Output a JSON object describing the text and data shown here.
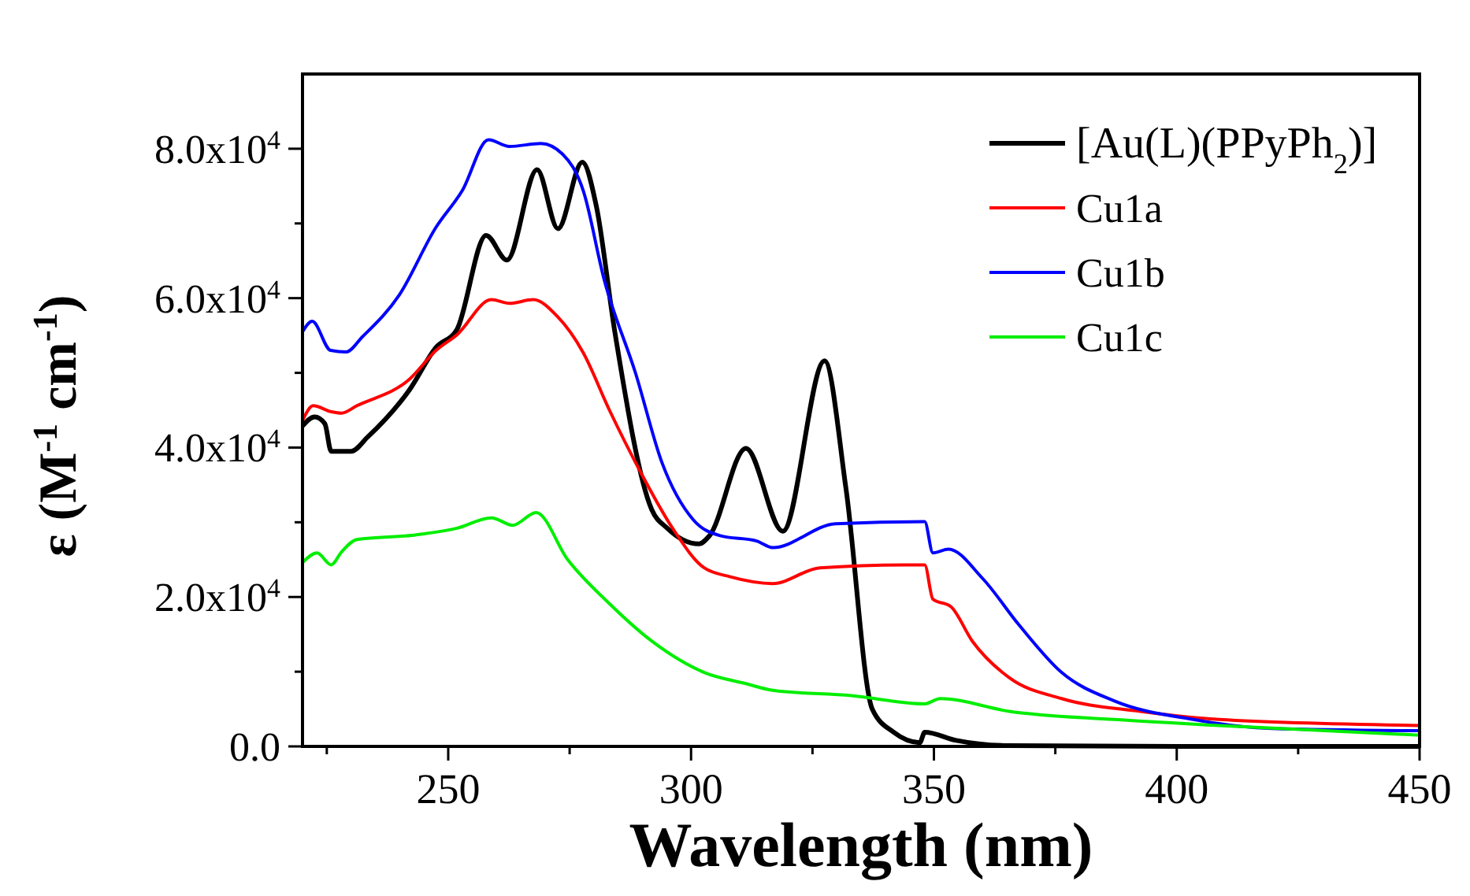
{
  "chart_data": {
    "type": "line",
    "xlabel": "Wavelength (nm)",
    "ylabel": "ε (M$^{-1}$ cm$^{-1}$)",
    "xlim": [
      220,
      450
    ],
    "ylim": [
      0,
      90000
    ],
    "xticks": [
      {
        "value": 225,
        "label": null
      },
      250,
      {
        "value": 275,
        "label": null
      },
      300,
      {
        "value": 325,
        "label": null
      },
      350,
      {
        "value": 375,
        "label": null
      },
      400,
      {
        "value": 425,
        "label": null
      },
      450
    ],
    "yticks": [
      {
        "value": 0,
        "label": "0.0"
      },
      {
        "value": 10000,
        "label": null
      },
      {
        "value": 20000,
        "label": "2.0x10$^{4}$"
      },
      {
        "value": 30000,
        "label": null
      },
      {
        "value": 40000,
        "label": "4.0x10$^{4}$"
      },
      {
        "value": 50000,
        "label": null
      },
      {
        "value": 60000,
        "label": "6.0x10$^{4}$"
      },
      {
        "value": 70000,
        "label": null
      },
      {
        "value": 80000,
        "label": "8.0x10$^{4}$"
      }
    ],
    "grid": false,
    "legend": "top right",
    "line_style": "solid",
    "marker": "none",
    "series": [
      {
        "name": "[Au(L)(PPyPh$_{2}$)]",
        "color": "#000000",
        "x": [
          220,
          222.5,
          224.6,
          225.9,
          230,
          233.4,
          242.1,
          247.5,
          251.8,
          257.8,
          262.1,
          268.3,
          272.6,
          277.6,
          280.5,
          284.3,
          291.9,
          295.1,
          301.6,
          303.8,
          311.3,
          318.9,
          327.5,
          331.9,
          337.3,
          341.7,
          347.1,
          348.1,
          354.6,
          365.5,
          400,
          450
        ],
        "values": [
          42900,
          44100,
          43200,
          39500,
          39500,
          41400,
          47800,
          53400,
          55800,
          68400,
          65100,
          77200,
          69300,
          78200,
          72300,
          55500,
          31700,
          29200,
          27100,
          28200,
          39900,
          28800,
          51600,
          34500,
          5000,
          1900,
          500,
          1900,
          800,
          100,
          0,
          0
        ]
      },
      {
        "name": "Cu1a",
        "color": "#ff0000",
        "x": [
          220,
          222.2,
          225.9,
          228,
          231.2,
          242.1,
          247.5,
          251.8,
          258.9,
          262.6,
          267.5,
          272.4,
          277.8,
          283.2,
          289.7,
          296.2,
          302.7,
          308.1,
          316.8,
          326.5,
          343.8,
          348.1,
          349.8,
          353.5,
          357.9,
          365.5,
          376.3,
          392.5,
          408.7,
          450
        ],
        "values": [
          43600,
          45600,
          44800,
          44600,
          45600,
          49200,
          53000,
          55100,
          59800,
          59300,
          59800,
          57600,
          52700,
          45000,
          36600,
          29200,
          23900,
          22700,
          21800,
          23900,
          24300,
          24300,
          19700,
          18700,
          14100,
          9200,
          6400,
          4700,
          3600,
          2800
        ]
      },
      {
        "name": "Cu1b",
        "color": "#0000ff",
        "x": [
          220,
          222,
          225.8,
          229,
          232.3,
          239.9,
          247.5,
          252.9,
          258.3,
          262.6,
          269.1,
          273.5,
          277.8,
          282.1,
          288.6,
          294,
          300.5,
          306,
          313.5,
          316.8,
          329.7,
          348.1,
          349.8,
          353,
          360,
          367.6,
          376.3,
          387.1,
          403.4,
          419.6,
          450
        ],
        "values": [
          55500,
          56900,
          53000,
          52800,
          54800,
          60400,
          69500,
          74400,
          81200,
          80300,
          80700,
          79300,
          74400,
          62500,
          49900,
          38000,
          30300,
          28200,
          27500,
          26600,
          29800,
          30100,
          25900,
          26400,
          22500,
          16200,
          9900,
          6100,
          3600,
          2400,
          2100
        ]
      },
      {
        "name": "Cu1c",
        "color": "#00ee00",
        "x": [
          220,
          223,
          225.9,
          228,
          231.2,
          243.2,
          251.8,
          258.9,
          263.3,
          268.1,
          274.6,
          283.2,
          291.9,
          302.7,
          311.3,
          316.8,
          333,
          348.1,
          351.3,
          365.5,
          387.1,
          408.7,
          450
        ],
        "values": [
          24600,
          25900,
          24300,
          26000,
          27700,
          28300,
          29200,
          30600,
          29600,
          31300,
          25000,
          19100,
          14100,
          9900,
          8400,
          7500,
          6800,
          5700,
          6400,
          4700,
          3600,
          2800,
          1500
        ]
      }
    ]
  }
}
